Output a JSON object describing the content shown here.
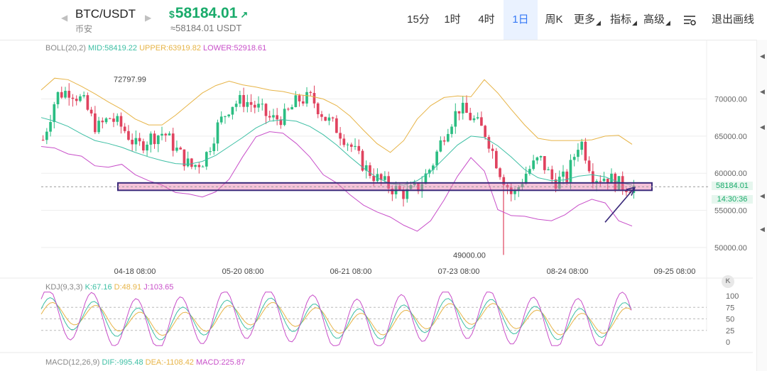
{
  "header": {
    "pair": "BTC/USDT",
    "exchange": "币安",
    "price_currency": "$",
    "price": "58184.01",
    "price_arrow": "↗",
    "price_usdt": "≈58184.01 USDT",
    "intervals": [
      "15分",
      "1时",
      "4时",
      "1日",
      "周K"
    ],
    "active_interval": "1日",
    "more_label": "更多",
    "indicators_label": "指标",
    "advanced_label": "高级",
    "settings_icon": "settings-sliders-icon",
    "exit_draw_label": "退出画线"
  },
  "boll": {
    "label": "BOLL(20,2)",
    "mid": "MID:58419.22",
    "upper": "UPPER:63919.82",
    "lower": "LOWER:52918.61",
    "colors": {
      "mid": "#3dbfa4",
      "upper": "#e7b447",
      "lower": "#c84fc9"
    }
  },
  "chart_data": {
    "type": "candlestick",
    "y_ticks": [
      "70000.00",
      "65000.00",
      "60000.00",
      "55000.00",
      "50000.00"
    ],
    "ylim": [
      47700,
      75300
    ],
    "x_ticks": [
      "04-18 08:00",
      "05-20 08:00",
      "06-21 08:00",
      "07-23 08:00",
      "08-24 08:00",
      "09-25 08:00"
    ],
    "last_price": "58184.01",
    "countdown": "14:30:36",
    "high_annotation": "72797.99",
    "low_annotation": "49000.00",
    "support_zone": [
      57700,
      58700
    ],
    "trend_line": [
      [
        53400,
        58100
      ]
    ],
    "up_color": "#2bbd82",
    "down_color": "#e0435f",
    "mid_path": [
      67500,
      67000,
      66300,
      65300,
      64400,
      64000,
      63500,
      62800,
      62200,
      61700,
      61300,
      61200,
      61600,
      62400,
      63600,
      64800,
      66100,
      67000,
      67200,
      67000,
      66300,
      65200,
      63800,
      62200,
      60700,
      59400,
      58600,
      58400,
      59000,
      60200,
      62000,
      63800,
      65000,
      64800,
      63700,
      62200,
      60500,
      59400,
      59000,
      59100,
      59600,
      59800,
      59500,
      58800,
      58400
    ],
    "upper_path": [
      71200,
      72800,
      72600,
      71700,
      70700,
      69600,
      68600,
      67300,
      66500,
      66500,
      67800,
      69300,
      70800,
      71800,
      72400,
      71900,
      71600,
      71200,
      71000,
      70600,
      70400,
      70000,
      69100,
      67700,
      65800,
      64000,
      62800,
      64400,
      67300,
      69100,
      70200,
      70400,
      70300,
      72600,
      70800,
      68600,
      66500,
      64700,
      64400,
      64400,
      64400,
      64500,
      65000,
      65100,
      63900
    ],
    "lower_path": [
      63600,
      63400,
      62600,
      62300,
      61000,
      60800,
      61200,
      59800,
      59000,
      58400,
      57400,
      57200,
      56800,
      57500,
      59200,
      62200,
      64900,
      65600,
      65400,
      64000,
      62200,
      59800,
      58700,
      57100,
      55700,
      54800,
      54100,
      53000,
      52200,
      53600,
      56400,
      59600,
      62100,
      60300,
      55100,
      54300,
      54200,
      53800,
      53600,
      54400,
      55700,
      56500,
      56000,
      53600,
      52900
    ],
    "candles_close": [
      64500,
      70500,
      71200,
      69600,
      66000,
      67500,
      66000,
      63500,
      64800,
      65500,
      63000,
      60800,
      61800,
      66300,
      69300,
      69800,
      68800,
      67200,
      67600,
      69900,
      70100,
      67500,
      65800,
      63500,
      60700,
      59100,
      58000,
      57200,
      58200,
      61200,
      65900,
      68800,
      67300,
      65300,
      60400,
      56800,
      60100,
      62000,
      58900,
      59300,
      64700,
      59500,
      59500,
      58400,
      58184
    ]
  },
  "kdj": {
    "label": "KDJ(9,3,3)",
    "k": "K:67.16",
    "d": "D:48.91",
    "j": "J:103.65",
    "y_ticks": [
      "100",
      "75",
      "50",
      "25",
      "0"
    ],
    "colors": {
      "k": "#3dbfa4",
      "d": "#e7b447",
      "j": "#c84fc9"
    }
  },
  "macd": {
    "label": "MACD(12,26,9)",
    "dif": "DIF:-995.48",
    "dea": "DEA:-1108.42",
    "macd": "MACD:225.87",
    "colors": {
      "dif": "#3dbfa4",
      "dea": "#e7b447",
      "macd": "#c84fc9"
    }
  },
  "icons": {
    "prev": "chevron-left-icon",
    "next": "chevron-right-icon",
    "k_button": "K"
  }
}
